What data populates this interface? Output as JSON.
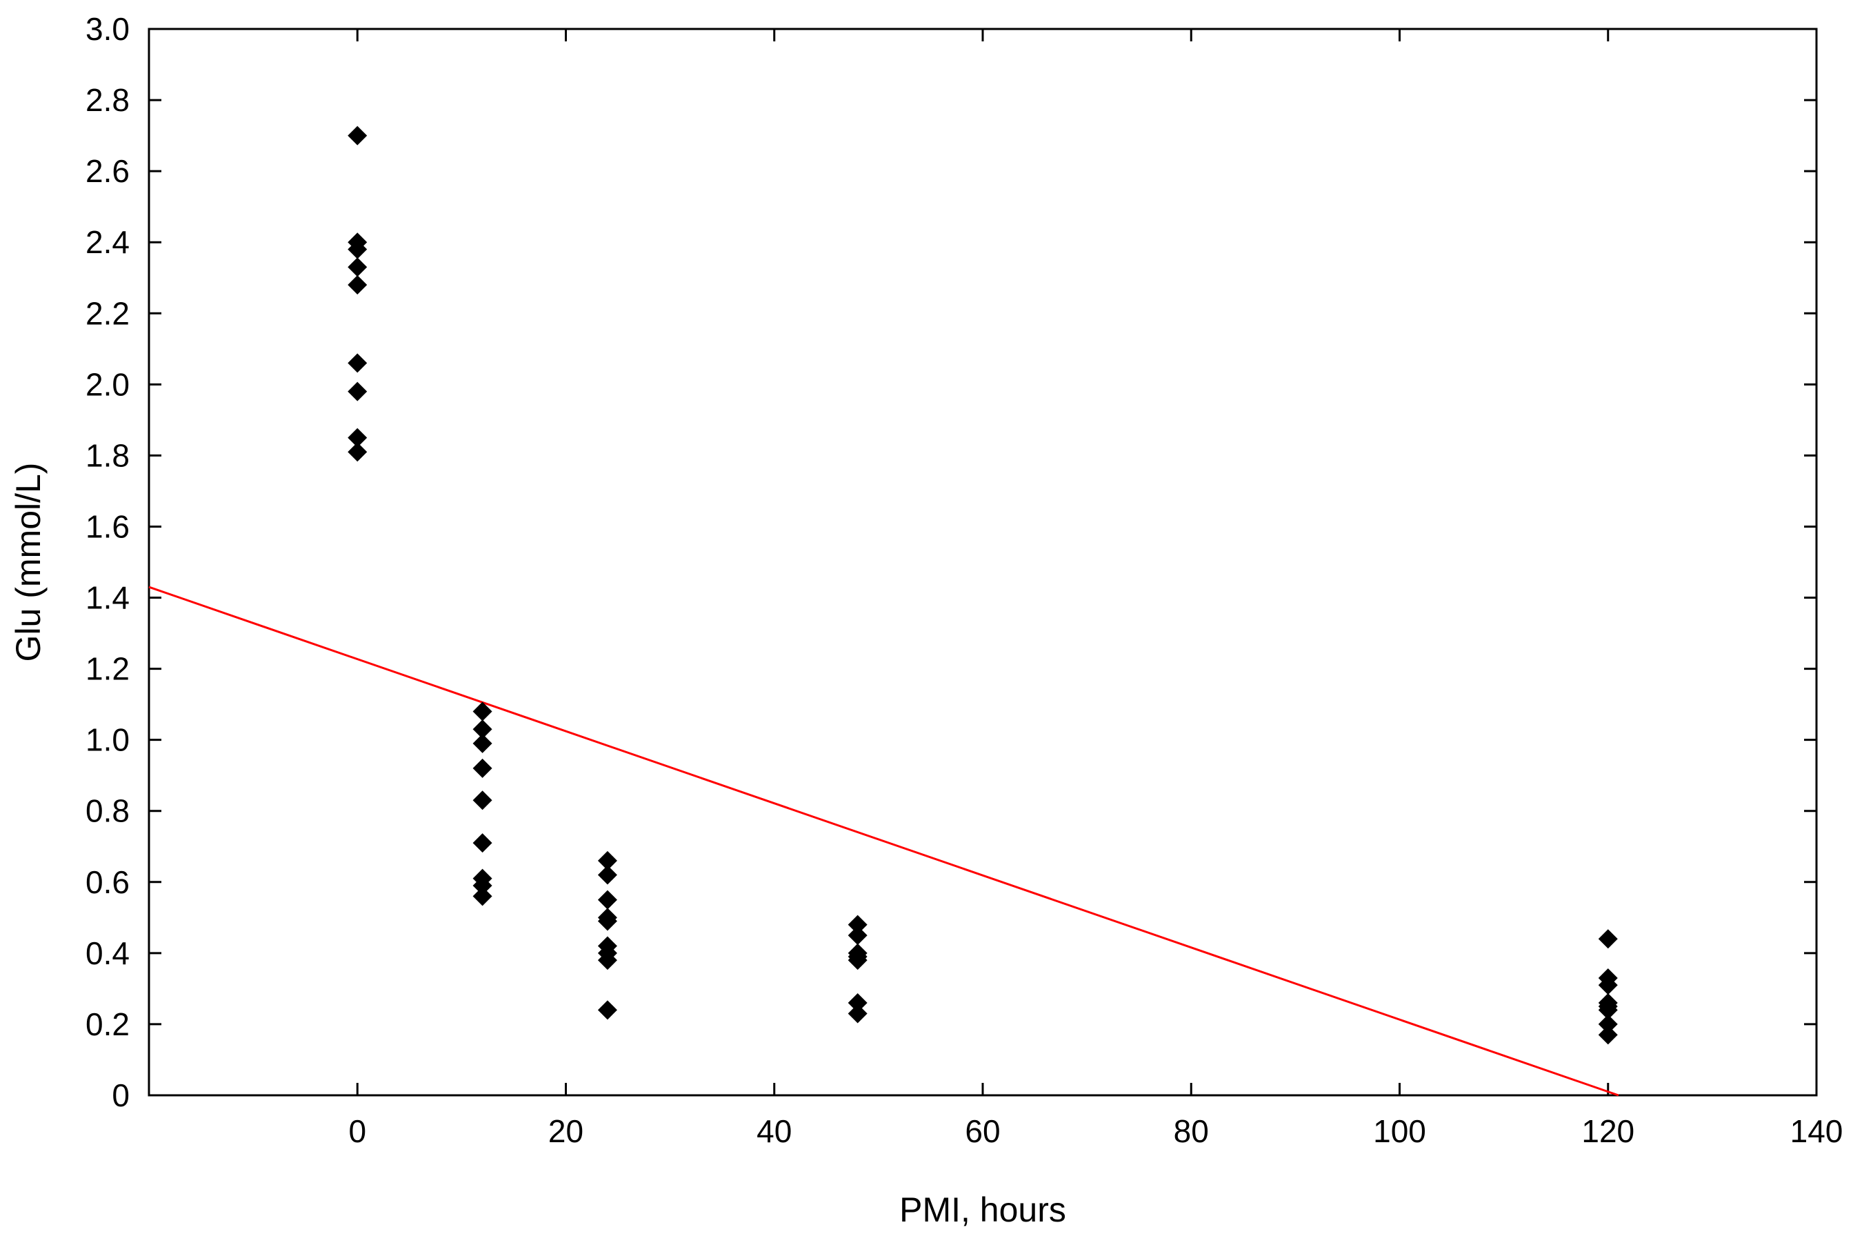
{
  "chart_data": {
    "type": "scatter",
    "title": "",
    "xlabel": "PMI, hours",
    "ylabel": "Glu (mmol/L)",
    "xlim": [
      -20,
      140
    ],
    "ylim": [
      0,
      3.0
    ],
    "x_ticks": [
      0,
      20,
      40,
      60,
      80,
      100,
      120,
      140
    ],
    "x_tick_labels": [
      "0",
      "20",
      "40",
      "60",
      "80",
      "100",
      "120",
      "140"
    ],
    "y_ticks": [
      0,
      0.2,
      0.4,
      0.6,
      0.8,
      1.0,
      1.2,
      1.4,
      1.6,
      1.8,
      2.0,
      2.2,
      2.4,
      2.6,
      2.8,
      3.0
    ],
    "y_tick_labels": [
      "0",
      "0.2",
      "0.4",
      "0.6",
      "0.8",
      "1.0",
      "1.2",
      "1.4",
      "1.6",
      "1.8",
      "2.0",
      "2.2",
      "2.4",
      "2.6",
      "2.8",
      "3.0"
    ],
    "grid": false,
    "marker": "diamond",
    "marker_color": "#000000",
    "series": [
      {
        "points": [
          [
            0,
            2.7
          ],
          [
            0,
            2.4
          ],
          [
            0,
            2.38
          ],
          [
            0,
            2.33
          ],
          [
            0,
            2.28
          ],
          [
            0,
            2.06
          ],
          [
            0,
            1.98
          ],
          [
            0,
            1.85
          ],
          [
            0,
            1.81
          ],
          [
            12,
            1.08
          ],
          [
            12,
            1.03
          ],
          [
            12,
            0.99
          ],
          [
            12,
            0.92
          ],
          [
            12,
            0.83
          ],
          [
            12,
            0.71
          ],
          [
            12,
            0.61
          ],
          [
            12,
            0.59
          ],
          [
            12,
            0.56
          ],
          [
            24,
            0.66
          ],
          [
            24,
            0.62
          ],
          [
            24,
            0.55
          ],
          [
            24,
            0.5
          ],
          [
            24,
            0.49
          ],
          [
            24,
            0.42
          ],
          [
            24,
            0.4
          ],
          [
            24,
            0.38
          ],
          [
            24,
            0.24
          ],
          [
            48,
            0.48
          ],
          [
            48,
            0.45
          ],
          [
            48,
            0.4
          ],
          [
            48,
            0.39
          ],
          [
            48,
            0.38
          ],
          [
            48,
            0.26
          ],
          [
            48,
            0.23
          ],
          [
            120,
            0.44
          ],
          [
            120,
            0.33
          ],
          [
            120,
            0.31
          ],
          [
            120,
            0.26
          ],
          [
            120,
            0.25
          ],
          [
            120,
            0.24
          ],
          [
            120,
            0.2
          ],
          [
            120,
            0.17
          ]
        ]
      }
    ],
    "regression_line": {
      "color": "#ff0000",
      "x": [
        -20,
        121
      ],
      "y": [
        1.43,
        0.0
      ]
    }
  }
}
